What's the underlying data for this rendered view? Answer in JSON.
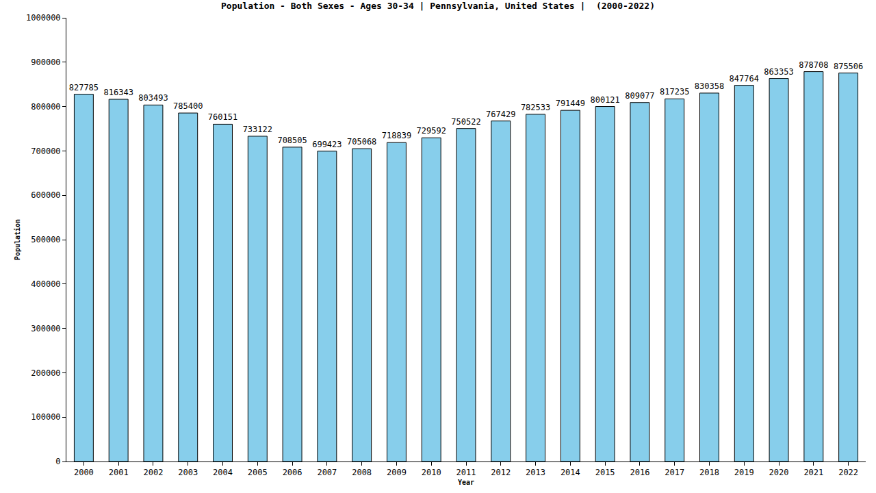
{
  "chart_data": {
    "type": "bar",
    "title": "Population - Both Sexes - Ages 30-34 | Pennsylvania, United States |  (2000-2022)",
    "x_label": "Year",
    "y_label": "Population",
    "categories": [
      "2000",
      "2001",
      "2002",
      "2003",
      "2004",
      "2005",
      "2006",
      "2007",
      "2008",
      "2009",
      "2010",
      "2011",
      "2012",
      "2013",
      "2014",
      "2015",
      "2016",
      "2017",
      "2018",
      "2019",
      "2020",
      "2021",
      "2022"
    ],
    "values": [
      827785,
      816343,
      803493,
      785400,
      760151,
      733122,
      708505,
      699423,
      705068,
      718839,
      729592,
      750522,
      767429,
      782533,
      791449,
      800121,
      809077,
      817235,
      830358,
      847764,
      863353,
      878708,
      875506
    ],
    "color": "#87ceeb",
    "ylim": [
      0,
      1000000
    ],
    "yticks": [
      0,
      100000,
      200000,
      300000,
      400000,
      500000,
      600000,
      700000,
      800000,
      900000,
      1000000
    ],
    "grid": false,
    "data_labels": true
  }
}
